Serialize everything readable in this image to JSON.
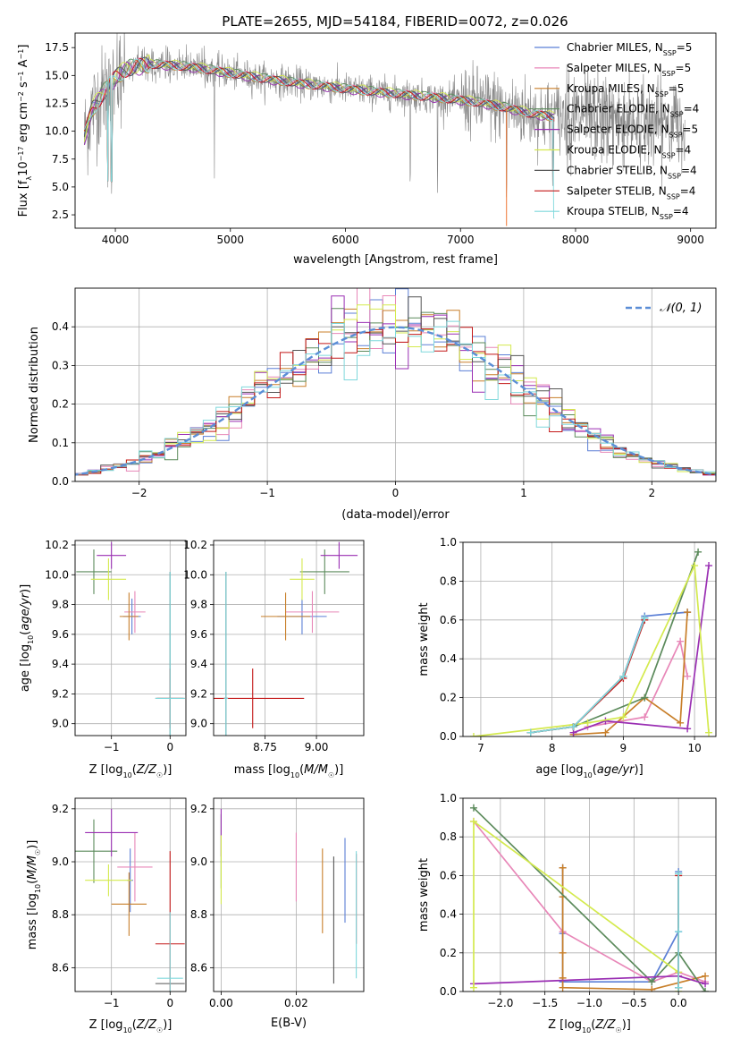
{
  "figure": {
    "title": "PLATE=2655, MJD=54184, FIBERID=0072, z=0.026"
  },
  "colors": {
    "Chabrier MILES": "#5b7fd6",
    "Salpeter MILES": "#e887b8",
    "Kroupa MILES": "#c87f2a",
    "Chabrier ELODIE": "#5b8a5b",
    "Salpeter ELODIE": "#9a2fb3",
    "Kroupa ELODIE": "#d4ea4e",
    "Chabrier STELIB": "#555555",
    "Salpeter STELIB": "#c41818",
    "Kroupa STELIB": "#7fd8dc",
    "data": "#888888",
    "model_orange": "#ee7733",
    "normal_curve": "#5b8ed6"
  },
  "chart_data": [
    {
      "id": "spectrum",
      "type": "line",
      "title": "PLATE=2655, MJD=54184, FIBERID=0072, z=0.026",
      "xlabel": "wavelength [Angstrom, rest frame]",
      "ylabel": "Flux [f_λ10^-17 erg cm^-2 s^-1 A^-1]",
      "xlim": [
        3650,
        9220
      ],
      "ylim": [
        1.3,
        18.8
      ],
      "xticks": [
        4000,
        5000,
        6000,
        7000,
        8000,
        9000
      ],
      "yticks": [
        2.5,
        5.0,
        7.5,
        10.0,
        12.5,
        15.0,
        17.5
      ],
      "legend_placement": "top-right",
      "legend": [
        {
          "label": "Chabrier MILES, N",
          "nssp": "5"
        },
        {
          "label": "Salpeter MILES, N",
          "nssp": "5"
        },
        {
          "label": "Kroupa MILES, N",
          "nssp": "5"
        },
        {
          "label": "Chabrier ELODIE, N",
          "nssp": "4"
        },
        {
          "label": "Salpeter ELODIE, N",
          "nssp": "5"
        },
        {
          "label": "Kroupa ELODIE, N",
          "nssp": "4"
        },
        {
          "label": "Chabrier STELIB, N",
          "nssp": "4"
        },
        {
          "label": "Salpeter STELIB, N",
          "nssp": "4"
        },
        {
          "label": "Kroupa STELIB, N",
          "nssp": "4"
        }
      ],
      "continuum": {
        "x": [
          3730,
          3800,
          3900,
          4000,
          4100,
          4200,
          4300,
          4500,
          4700,
          5000,
          5300,
          5600,
          6000,
          6500,
          7000,
          7200,
          7400,
          7600,
          7800
        ],
        "y": [
          9.5,
          12.0,
          13.5,
          14.8,
          15.6,
          15.8,
          16.0,
          15.9,
          15.7,
          15.2,
          14.7,
          14.3,
          13.8,
          13.3,
          12.8,
          12.5,
          12.1,
          11.6,
          11.3
        ]
      },
      "deep_lines": [
        3934,
        3969,
        4861,
        6563,
        6800,
        7400,
        7800
      ],
      "data_range": [
        3730,
        8950
      ],
      "model_range": [
        3730,
        7820
      ]
    },
    {
      "id": "residuals",
      "type": "histogram",
      "xlabel": "(data-model)/error",
      "ylabel": "Normed distribution",
      "xlim": [
        -2.5,
        2.5
      ],
      "ylim": [
        0,
        0.5
      ],
      "xticks": [
        -2,
        -1,
        0,
        1,
        2
      ],
      "yticks": [
        0.0,
        0.1,
        0.2,
        0.3,
        0.4
      ],
      "legend": "𝒩(0, 1)",
      "legend_placement": "top-right",
      "bin_width": 0.1,
      "curve": "standard normal pdf"
    },
    {
      "id": "age_vs_Z",
      "type": "errorbar",
      "xlabel": "Z [log₁₀(Z/Z☉)]",
      "ylabel": "age  [log₁₀(age/yr)]",
      "xlim": [
        -1.62,
        0.27
      ],
      "ylim": [
        8.92,
        10.23
      ],
      "xticks": [
        -1,
        0
      ],
      "yticks": [
        9.0,
        9.2,
        9.4,
        9.6,
        9.8,
        10.0,
        10.2
      ],
      "points": [
        {
          "model": "Chabrier MILES",
          "x": -0.65,
          "y": 9.72,
          "xerr": 0.15,
          "yerr": 0.12
        },
        {
          "model": "Salpeter MILES",
          "x": -0.6,
          "y": 9.75,
          "xerr": 0.18,
          "yerr": 0.14
        },
        {
          "model": "Kroupa MILES",
          "x": -0.7,
          "y": 9.72,
          "xerr": 0.16,
          "yerr": 0.16
        },
        {
          "model": "Chabrier ELODIE",
          "x": -1.3,
          "y": 10.02,
          "xerr": 0.3,
          "yerr": 0.15
        },
        {
          "model": "Salpeter ELODIE",
          "x": -1.0,
          "y": 10.13,
          "xerr": 0.25,
          "yerr": 0.09
        },
        {
          "model": "Kroupa ELODIE",
          "x": -1.05,
          "y": 9.97,
          "xerr": 0.3,
          "yerr": 0.14
        },
        {
          "model": "Chabrier STELIB",
          "x": 0.0,
          "y": 9.17,
          "xerr": 0.25,
          "yerr": 0.85
        },
        {
          "model": "Salpeter STELIB",
          "x": 0.0,
          "y": 9.17,
          "xerr": 0.22,
          "yerr": 0.2
        },
        {
          "model": "Kroupa STELIB",
          "x": 0.0,
          "y": 9.17,
          "xerr": 0.25,
          "yerr": 0.85
        }
      ]
    },
    {
      "id": "age_vs_mass",
      "type": "errorbar",
      "xlabel": "mass [log₁₀(M/M☉)]",
      "ylabel": "",
      "xlim": [
        8.5,
        9.23
      ],
      "ylim": [
        8.92,
        10.23
      ],
      "xticks": [
        8.75,
        9.0
      ],
      "yticks": [
        9.0,
        9.2,
        9.4,
        9.6,
        9.8,
        10.0,
        10.2
      ],
      "points": [
        {
          "model": "Chabrier MILES",
          "x": 8.93,
          "y": 9.72,
          "xerr": 0.12,
          "yerr": 0.12
        },
        {
          "model": "Salpeter MILES",
          "x": 8.98,
          "y": 9.75,
          "xerr": 0.13,
          "yerr": 0.14
        },
        {
          "model": "Kroupa MILES",
          "x": 8.85,
          "y": 9.72,
          "xerr": 0.12,
          "yerr": 0.16
        },
        {
          "model": "Chabrier ELODIE",
          "x": 9.04,
          "y": 10.02,
          "xerr": 0.12,
          "yerr": 0.15
        },
        {
          "model": "Salpeter ELODIE",
          "x": 9.11,
          "y": 10.13,
          "xerr": 0.09,
          "yerr": 0.09
        },
        {
          "model": "Kroupa ELODIE",
          "x": 8.93,
          "y": 9.97,
          "xerr": 0.06,
          "yerr": 0.14
        },
        {
          "model": "Chabrier STELIB",
          "x": 8.56,
          "y": 9.17,
          "xerr": 0.01,
          "yerr": 0.85
        },
        {
          "model": "Salpeter STELIB",
          "x": 8.69,
          "y": 9.17,
          "xerr": 0.25,
          "yerr": 0.2
        },
        {
          "model": "Kroupa STELIB",
          "x": 8.56,
          "y": 9.17,
          "xerr": 0.01,
          "yerr": 0.85
        }
      ]
    },
    {
      "id": "massweight_vs_age",
      "type": "line",
      "xlabel": "age  [log₁₀(age/yr)]",
      "ylabel": "mass weight",
      "xlim": [
        6.75,
        10.3
      ],
      "ylim": [
        0,
        1.0
      ],
      "xticks": [
        7,
        8,
        9,
        10
      ],
      "yticks": [
        0.0,
        0.2,
        0.4,
        0.6,
        0.8,
        1.0
      ],
      "series": [
        {
          "model": "Chabrier MILES",
          "x": [
            7.7,
            8.3,
            9.0,
            9.3,
            9.9
          ],
          "y": [
            0.02,
            0.05,
            0.31,
            0.62,
            0.64
          ]
        },
        {
          "model": "Salpeter MILES",
          "x": [
            8.5,
            9.3,
            9.8,
            9.9
          ],
          "y": [
            0.05,
            0.1,
            0.49,
            0.31
          ]
        },
        {
          "model": "Kroupa MILES",
          "x": [
            8.3,
            8.75,
            9.3,
            9.8,
            9.9
          ],
          "y": [
            0.01,
            0.02,
            0.2,
            0.07,
            0.64
          ]
        },
        {
          "model": "Chabrier ELODIE",
          "x": [
            8.3,
            9.3,
            10.05
          ],
          "y": [
            0.05,
            0.2,
            0.95
          ]
        },
        {
          "model": "Salpeter ELODIE",
          "x": [
            8.3,
            8.75,
            9.9,
            10.2
          ],
          "y": [
            0.02,
            0.08,
            0.04,
            0.88
          ]
        },
        {
          "model": "Kroupa ELODIE",
          "x": [
            6.9,
            8.5,
            9.0,
            10.0,
            10.2
          ],
          "y": [
            0.0,
            0.07,
            0.1,
            0.88,
            0.02
          ]
        },
        {
          "model": "Chabrier STELIB",
          "x": [
            7.7,
            8.3,
            9.0,
            9.3
          ],
          "y": [
            0.02,
            0.05,
            0.31,
            0.61
          ]
        },
        {
          "model": "Salpeter STELIB",
          "x": [
            7.7,
            8.3,
            9.0,
            9.3
          ],
          "y": [
            0.02,
            0.05,
            0.3,
            0.6
          ]
        },
        {
          "model": "Kroupa STELIB",
          "x": [
            7.7,
            8.3,
            9.0,
            9.3
          ],
          "y": [
            0.02,
            0.05,
            0.31,
            0.61
          ]
        }
      ]
    },
    {
      "id": "mass_vs_Z",
      "type": "errorbar",
      "xlabel": "Z [log₁₀(Z/Z☉)]",
      "ylabel": "mass [log₁₀(M/M☉)]",
      "xlim": [
        -1.62,
        0.27
      ],
      "ylim": [
        8.51,
        9.24
      ],
      "xticks": [
        -1,
        0
      ],
      "yticks": [
        8.6,
        8.8,
        9.0,
        9.2
      ],
      "points": [
        {
          "model": "Chabrier MILES",
          "x": -0.68,
          "y": 8.93,
          "xerr": 0.05,
          "yerr": 0.12
        },
        {
          "model": "Salpeter MILES",
          "x": -0.6,
          "y": 8.98,
          "xerr": 0.3,
          "yerr": 0.13
        },
        {
          "model": "Kroupa MILES",
          "x": -0.7,
          "y": 8.84,
          "xerr": 0.3,
          "yerr": 0.12
        },
        {
          "model": "Chabrier ELODIE",
          "x": -1.3,
          "y": 9.04,
          "xerr": 0.4,
          "yerr": 0.12
        },
        {
          "model": "Salpeter ELODIE",
          "x": -1.0,
          "y": 9.11,
          "xerr": 0.45,
          "yerr": 0.09
        },
        {
          "model": "Kroupa ELODIE",
          "x": -1.05,
          "y": 8.93,
          "xerr": 0.4,
          "yerr": 0.06
        },
        {
          "model": "Chabrier STELIB",
          "x": 0.0,
          "y": 8.54,
          "xerr": 0.25,
          "yerr": 0.0
        },
        {
          "model": "Salpeter STELIB",
          "x": 0.0,
          "y": 8.69,
          "xerr": 0.25,
          "yerr": 0.35
        },
        {
          "model": "Kroupa STELIB",
          "x": 0.0,
          "y": 8.56,
          "xerr": 0.22,
          "yerr": 0.25
        }
      ]
    },
    {
      "id": "mass_vs_ebv",
      "type": "errorbar",
      "xlabel": "E(B-V)",
      "ylabel": "",
      "xlim": [
        -0.002,
        0.038
      ],
      "ylim": [
        8.51,
        9.24
      ],
      "xticks": [
        0.0,
        0.02
      ],
      "yticks": [
        8.6,
        8.8,
        9.0,
        9.2
      ],
      "points": [
        {
          "model": "Chabrier MILES",
          "x": 0.033,
          "y": 8.93,
          "xerr": 0,
          "yerr": 0.16
        },
        {
          "model": "Salpeter MILES",
          "x": 0.02,
          "y": 8.98,
          "xerr": 0,
          "yerr": 0.13
        },
        {
          "model": "Kroupa MILES",
          "x": 0.027,
          "y": 8.89,
          "xerr": 0,
          "yerr": 0.16
        },
        {
          "model": "Chabrier ELODIE",
          "x": 0.0,
          "y": 9.04,
          "xerr": 0,
          "yerr": 0.14
        },
        {
          "model": "Salpeter ELODIE",
          "x": 0.0,
          "y": 9.11,
          "xerr": 0,
          "yerr": 0.09
        },
        {
          "model": "Kroupa ELODIE",
          "x": 0.0,
          "y": 8.97,
          "xerr": 0,
          "yerr": 0.13
        },
        {
          "model": "Chabrier STELIB",
          "x": 0.03,
          "y": 8.78,
          "xerr": 0,
          "yerr": 0.24
        },
        {
          "model": "Salpeter STELIB",
          "x": 0.036,
          "y": 8.86,
          "xerr": 0,
          "yerr": 0.17
        },
        {
          "model": "Kroupa STELIB",
          "x": 0.036,
          "y": 8.8,
          "xerr": 0,
          "yerr": 0.24
        }
      ]
    },
    {
      "id": "massweight_vs_Z",
      "type": "line",
      "xlabel": "Z [log₁₀(Z/Z☉)]",
      "ylabel": "mass weight",
      "xlim": [
        -2.42,
        0.42
      ],
      "ylim": [
        0,
        1.0
      ],
      "xticks": [
        -2.0,
        -1.5,
        -1.0,
        -0.5,
        0.0
      ],
      "yticks": [
        0.0,
        0.2,
        0.4,
        0.6,
        0.8,
        1.0
      ],
      "series": [
        {
          "model": "Chabrier MILES",
          "x": [
            -1.3,
            -1.3,
            -1.3,
            -0.3,
            0.0,
            0.0
          ],
          "y": [
            0.64,
            0.3,
            0.05,
            0.05,
            0.31,
            0.62
          ]
        },
        {
          "model": "Salpeter MILES",
          "x": [
            -2.3,
            -1.3,
            -0.3,
            0.0,
            0.3
          ],
          "y": [
            0.88,
            0.31,
            0.05,
            0.1,
            0.05
          ]
        },
        {
          "model": "Kroupa MILES",
          "x": [
            -1.3,
            -1.3,
            -1.3,
            -1.3,
            -1.3,
            -0.3,
            0.3
          ],
          "y": [
            0.64,
            0.49,
            0.2,
            0.07,
            0.02,
            0.01,
            0.08
          ]
        },
        {
          "model": "Chabrier ELODIE",
          "x": [
            -2.3,
            -0.3,
            0.0,
            0.3
          ],
          "y": [
            0.95,
            0.05,
            0.2,
            0.0
          ]
        },
        {
          "model": "Salpeter ELODIE",
          "x": [
            -2.3,
            0.0,
            0.3
          ],
          "y": [
            0.04,
            0.08,
            0.04
          ]
        },
        {
          "model": "Kroupa ELODIE",
          "x": [
            -2.3,
            -2.3,
            0.0,
            0.0
          ],
          "y": [
            0.02,
            0.88,
            0.1,
            0.0
          ]
        },
        {
          "model": "Chabrier STELIB",
          "x": [
            0.0,
            0.0
          ],
          "y": [
            0.02,
            0.61
          ]
        },
        {
          "model": "Salpeter STELIB",
          "x": [
            0.0,
            0.0
          ],
          "y": [
            0.02,
            0.6
          ]
        },
        {
          "model": "Kroupa STELIB",
          "x": [
            0.0,
            0.0,
            0.0
          ],
          "y": [
            0.02,
            0.31,
            0.61
          ]
        }
      ]
    }
  ]
}
